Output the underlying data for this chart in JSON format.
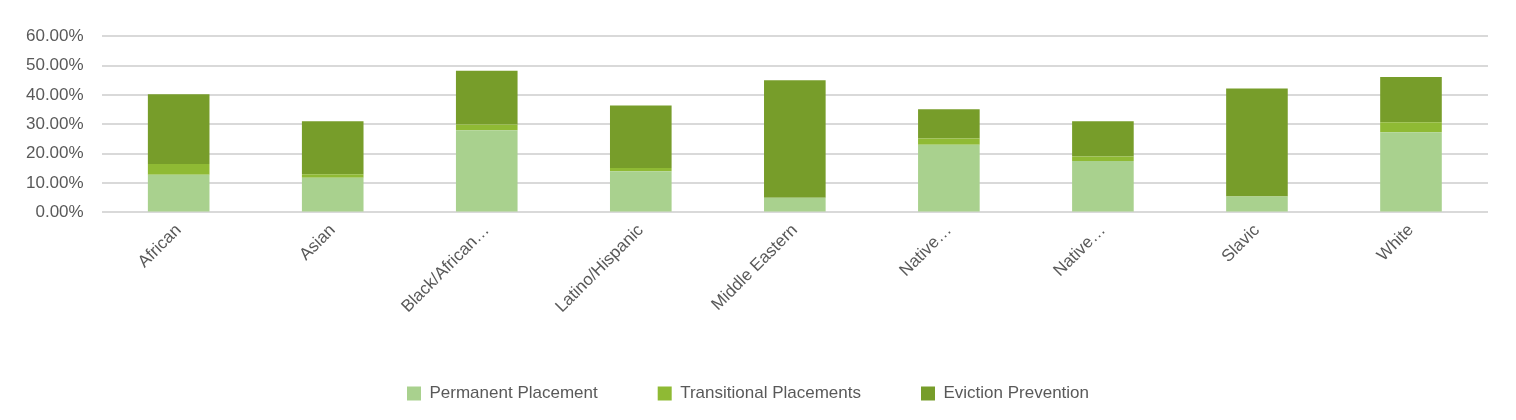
{
  "chart_data": {
    "type": "bar",
    "stacked": true,
    "categories": [
      "African",
      "Asian",
      "Black/African…",
      "Latino/Hispanic",
      "Middle Eastern",
      "Native…",
      "Native…",
      "Slavic",
      "White"
    ],
    "series": [
      {
        "name": "Permanent Placement",
        "color": "#a9d18e",
        "values": [
          12.8,
          11.8,
          28.0,
          14.0,
          5.0,
          23.0,
          17.5,
          5.4,
          27.3
        ]
      },
      {
        "name": "Transitional Placements",
        "color": "#8fba34",
        "values": [
          3.7,
          1.2,
          1.9,
          1.1,
          0,
          2.2,
          1.5,
          0,
          3.4
        ]
      },
      {
        "name": "Eviction Prevention",
        "color": "#779d2a",
        "values": [
          23.7,
          18.0,
          18.3,
          21.3,
          40.0,
          9.9,
          12.0,
          36.8,
          15.4
        ]
      }
    ],
    "ylim": [
      0,
      60
    ],
    "yticks": [
      {
        "value": 0,
        "label": "0.00%"
      },
      {
        "value": 10,
        "label": "10.00%"
      },
      {
        "value": 20,
        "label": "20.00%"
      },
      {
        "value": 30,
        "label": "30.00%"
      },
      {
        "value": 40,
        "label": "40.00%"
      },
      {
        "value": 50,
        "label": "50.00%"
      },
      {
        "value": 60,
        "label": "60.00%"
      }
    ],
    "grid": "y",
    "legend": "bottom"
  }
}
